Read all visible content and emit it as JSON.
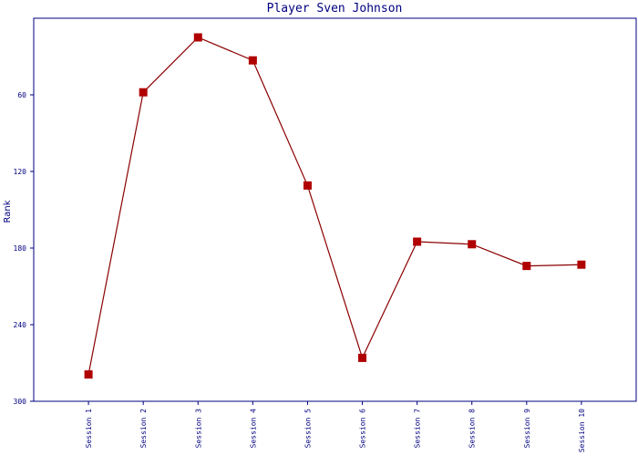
{
  "chart_data": {
    "type": "line",
    "title": "Player Sven Johnson",
    "y_label": "Rank",
    "categories": [
      "Session 1",
      "Session 2",
      "Session 3",
      "Session 4",
      "Session 5",
      "Session 6",
      "Session 7",
      "Session 8",
      "Session 9",
      "Session 10"
    ],
    "series": [
      {
        "name": "Rank",
        "color": "#b00000",
        "values": [
          279,
          58,
          15,
          33,
          131,
          266,
          175,
          177,
          194,
          193
        ]
      }
    ],
    "ylim": [
      300,
      0
    ],
    "yticks": [
      60,
      120,
      180,
      240,
      300
    ],
    "grid": false
  }
}
